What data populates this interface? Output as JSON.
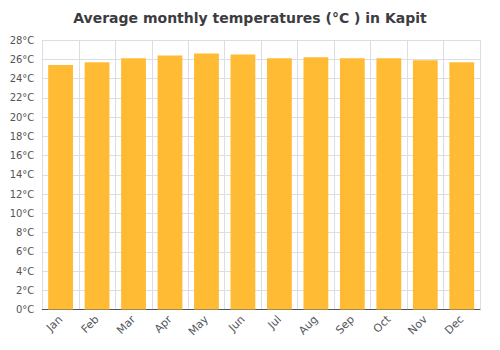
{
  "chart_data": {
    "type": "bar",
    "title": "Average monthly temperatures (°C ) in Kapit",
    "categories": [
      "Jan",
      "Feb",
      "Mar",
      "Apr",
      "May",
      "Jun",
      "Jul",
      "Aug",
      "Sep",
      "Oct",
      "Nov",
      "Dec"
    ],
    "values": [
      25.4,
      25.7,
      26.1,
      26.4,
      26.6,
      26.5,
      26.1,
      26.2,
      26.1,
      26.1,
      25.9,
      25.7
    ],
    "color": "#FFBB33",
    "ylim": [
      0,
      28
    ],
    "yticks": [
      {
        "value": 0,
        "label": "0°C"
      },
      {
        "value": 2,
        "label": "2°C"
      },
      {
        "value": 4,
        "label": "4°C"
      },
      {
        "value": 6,
        "label": "6°C"
      },
      {
        "value": 8,
        "label": "8°C"
      },
      {
        "value": 10,
        "label": "10°C"
      },
      {
        "value": 12,
        "label": "12°C"
      },
      {
        "value": 14,
        "label": "14°C"
      },
      {
        "value": 16,
        "label": "16°C"
      },
      {
        "value": 18,
        "label": "18°C"
      },
      {
        "value": 20,
        "label": "20°C"
      },
      {
        "value": 22,
        "label": "22°C"
      },
      {
        "value": 24,
        "label": "24°C"
      },
      {
        "value": 26,
        "label": "26°C"
      },
      {
        "value": 28,
        "label": "28°C"
      }
    ],
    "grid": true
  }
}
